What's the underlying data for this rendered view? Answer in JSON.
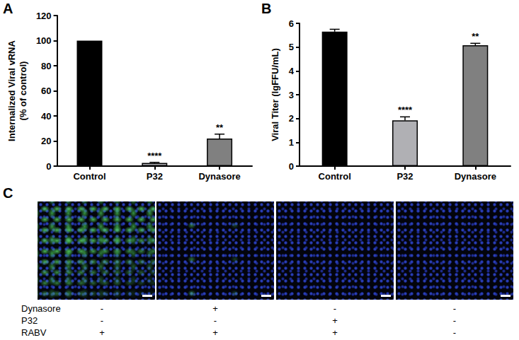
{
  "chart_data": [
    {
      "type": "bar",
      "title": "A",
      "categories": [
        "Control",
        "P32",
        "Dynasore"
      ],
      "values": [
        100,
        2.5,
        22
      ],
      "errors": [
        0,
        0.5,
        3.5
      ],
      "significance": [
        null,
        "****",
        "**"
      ],
      "colors": [
        "#000000",
        "#b0b0b4",
        "#808080"
      ],
      "y_label": [
        "Internalized Viral vRNA",
        "(% of control)"
      ],
      "ylim": [
        0,
        120
      ],
      "yticks": [
        0,
        20,
        40,
        60,
        80,
        100,
        120
      ],
      "grid": false
    },
    {
      "type": "bar",
      "title": "B",
      "categories": [
        "Control",
        "P32",
        "Dynasore"
      ],
      "values": [
        5.65,
        1.92,
        5.08
      ],
      "errors": [
        0.1,
        0.15,
        0.08
      ],
      "significance": [
        null,
        "****",
        "**"
      ],
      "colors": [
        "#000000",
        "#b0b0b4",
        "#808080"
      ],
      "y_label": [
        "Viral Titer (lgFFU/mL)"
      ],
      "ylim": [
        0,
        6
      ],
      "yticks": [
        0,
        1,
        2,
        3,
        4,
        5,
        6
      ],
      "grid": false
    }
  ],
  "panel_c": {
    "title": "C",
    "rows": [
      {
        "label": "Dynasore",
        "values": [
          "-",
          "+",
          "-",
          "-"
        ]
      },
      {
        "label": "P32",
        "values": [
          "-",
          "-",
          "+",
          "-"
        ]
      },
      {
        "label": "RABV",
        "values": [
          "+",
          "+",
          "+",
          "-"
        ]
      }
    ]
  }
}
